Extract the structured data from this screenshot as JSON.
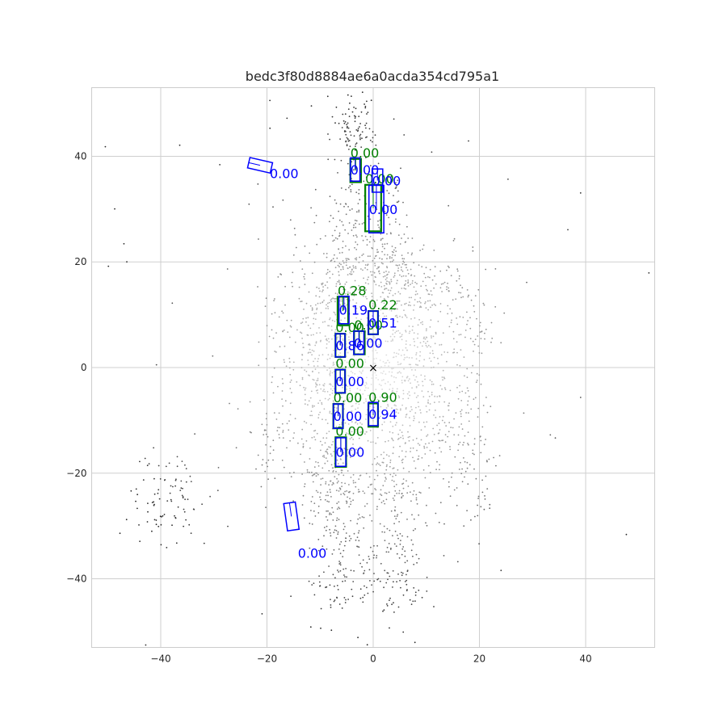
{
  "chart_data": {
    "type": "scatter",
    "title": "bedc3f80d8884ae6a0acda354cd795a1",
    "xlabel": "",
    "ylabel": "",
    "xlim": [
      -53,
      53
    ],
    "ylim": [
      -53,
      53
    ],
    "xticks": [
      -40,
      -20,
      0,
      20,
      40
    ],
    "yticks": [
      -40,
      -20,
      0,
      20,
      40
    ],
    "grid": true,
    "colors": {
      "ground_truth": "#008000",
      "prediction": "#0000ff",
      "ego": "#000000",
      "points_near": "#e2e2e2",
      "points_far": "#333333"
    },
    "ego_marker": {
      "x": 0,
      "y": 0,
      "symbol": "×"
    },
    "ground_truth_boxes": [
      {
        "cx": -3.3,
        "cy": 37.3,
        "w": 2.0,
        "h": 4.4,
        "score": "0.00"
      },
      {
        "cx": 0.0,
        "cy": 30.2,
        "w": 3.0,
        "h": 8.8,
        "score": "0.00"
      },
      {
        "cx": -5.7,
        "cy": 10.7,
        "w": 2.0,
        "h": 5.4,
        "score": "0.28"
      },
      {
        "cx": 0.0,
        "cy": 8.5,
        "w": 1.8,
        "h": 4.4,
        "score": "0.22"
      },
      {
        "cx": -2.6,
        "cy": 4.7,
        "w": 2.0,
        "h": 4.4,
        "score": "0.00"
      },
      {
        "cx": -6.2,
        "cy": 4.2,
        "w": 1.8,
        "h": 4.4,
        "score": "0.00"
      },
      {
        "cx": -6.2,
        "cy": -2.6,
        "w": 1.8,
        "h": 4.4,
        "score": "0.00"
      },
      {
        "cx": 0.0,
        "cy": -9.0,
        "w": 1.8,
        "h": 4.4,
        "score": "0.90"
      },
      {
        "cx": -6.6,
        "cy": -9.2,
        "w": 1.8,
        "h": 4.6,
        "score": "0.00"
      },
      {
        "cx": -6.1,
        "cy": -16.0,
        "w": 2.0,
        "h": 5.6,
        "score": "0.00"
      }
    ],
    "prediction_boxes": [
      {
        "cx": -21.3,
        "cy": 38.3,
        "w": 2.0,
        "h": 4.4,
        "angle": 77,
        "score": "0.00"
      },
      {
        "cx": -3.4,
        "cy": 37.5,
        "w": 1.8,
        "h": 4.4,
        "angle": 0,
        "score": "0.00"
      },
      {
        "cx": 0.8,
        "cy": 35.4,
        "w": 2.0,
        "h": 4.4,
        "angle": 0,
        "score": "0.00"
      },
      {
        "cx": 0.6,
        "cy": 30.0,
        "w": 2.8,
        "h": 9.0,
        "angle": 0,
        "score": "0.00"
      },
      {
        "cx": -5.5,
        "cy": 10.9,
        "w": 1.9,
        "h": 5.2,
        "angle": 0,
        "score": "0.19"
      },
      {
        "cx": 0.0,
        "cy": 8.5,
        "w": 1.8,
        "h": 4.4,
        "angle": 0,
        "score": "0.51"
      },
      {
        "cx": -2.7,
        "cy": 4.7,
        "w": 1.9,
        "h": 4.4,
        "angle": 0,
        "score": "0.00"
      },
      {
        "cx": -6.2,
        "cy": 4.2,
        "w": 1.8,
        "h": 4.4,
        "angle": 0,
        "score": "0.86"
      },
      {
        "cx": -6.2,
        "cy": -2.6,
        "w": 1.8,
        "h": 4.4,
        "angle": 0,
        "score": "0.00"
      },
      {
        "cx": 0.0,
        "cy": -8.8,
        "w": 1.8,
        "h": 4.4,
        "angle": 0,
        "score": "0.94"
      },
      {
        "cx": -6.6,
        "cy": -9.2,
        "w": 1.8,
        "h": 4.6,
        "angle": 0,
        "score": "0.00"
      },
      {
        "cx": -6.1,
        "cy": -16.0,
        "w": 1.9,
        "h": 5.4,
        "angle": 0,
        "score": "0.00"
      },
      {
        "cx": -15.4,
        "cy": -28.2,
        "w": 2.2,
        "h": 5.2,
        "angle": 8,
        "score": "0.00"
      }
    ],
    "point_clusters": [
      {
        "cx": -3.0,
        "cy": 45.0,
        "sx": 2.5,
        "sy": 3.5,
        "n": 90
      },
      {
        "cx": -4.0,
        "cy": 28.0,
        "sx": 2.0,
        "sy": 6.0,
        "n": 90
      },
      {
        "cx": 3.0,
        "cy": 26.0,
        "sx": 2.0,
        "sy": 6.0,
        "n": 90
      },
      {
        "cx": -5.0,
        "cy": 16.0,
        "sx": 2.0,
        "sy": 4.0,
        "n": 80
      },
      {
        "cx": 4.0,
        "cy": 18.0,
        "sx": 3.0,
        "sy": 3.0,
        "n": 70
      },
      {
        "cx": 10.0,
        "cy": 15.0,
        "sx": 4.0,
        "sy": 2.0,
        "n": 60
      },
      {
        "cx": -7.0,
        "cy": 0.0,
        "sx": 3.5,
        "sy": 12.0,
        "n": 500
      },
      {
        "cx": 5.0,
        "cy": 0.0,
        "sx": 4.0,
        "sy": 11.0,
        "n": 550
      },
      {
        "cx": -14.0,
        "cy": 2.0,
        "sx": 3.0,
        "sy": 12.0,
        "n": 160
      },
      {
        "cx": 15.0,
        "cy": -3.0,
        "sx": 3.0,
        "sy": 13.0,
        "n": 160
      },
      {
        "cx": -7.0,
        "cy": -22.0,
        "sx": 3.0,
        "sy": 5.0,
        "n": 140
      },
      {
        "cx": 3.0,
        "cy": -22.0,
        "sx": 3.5,
        "sy": 5.0,
        "n": 110
      },
      {
        "cx": -6.0,
        "cy": -37.0,
        "sx": 3.0,
        "sy": 6.0,
        "n": 110
      },
      {
        "cx": 4.0,
        "cy": -38.0,
        "sx": 3.0,
        "sy": 5.0,
        "n": 110
      },
      {
        "cx": -38.0,
        "cy": -25.0,
        "sx": 4.0,
        "sy": 5.0,
        "n": 90
      },
      {
        "cx": 18.0,
        "cy": -18.0,
        "sx": 3.0,
        "sy": 6.0,
        "n": 60
      },
      {
        "cx": -20.0,
        "cy": -15.0,
        "sx": 2.0,
        "sy": 5.0,
        "n": 40
      },
      {
        "cx": 20.0,
        "cy": 5.0,
        "sx": 2.0,
        "sy": 5.0,
        "n": 40
      },
      {
        "cx": 0.0,
        "cy": 0.0,
        "sx": 30.0,
        "sy": 30.0,
        "n": 100
      }
    ]
  }
}
